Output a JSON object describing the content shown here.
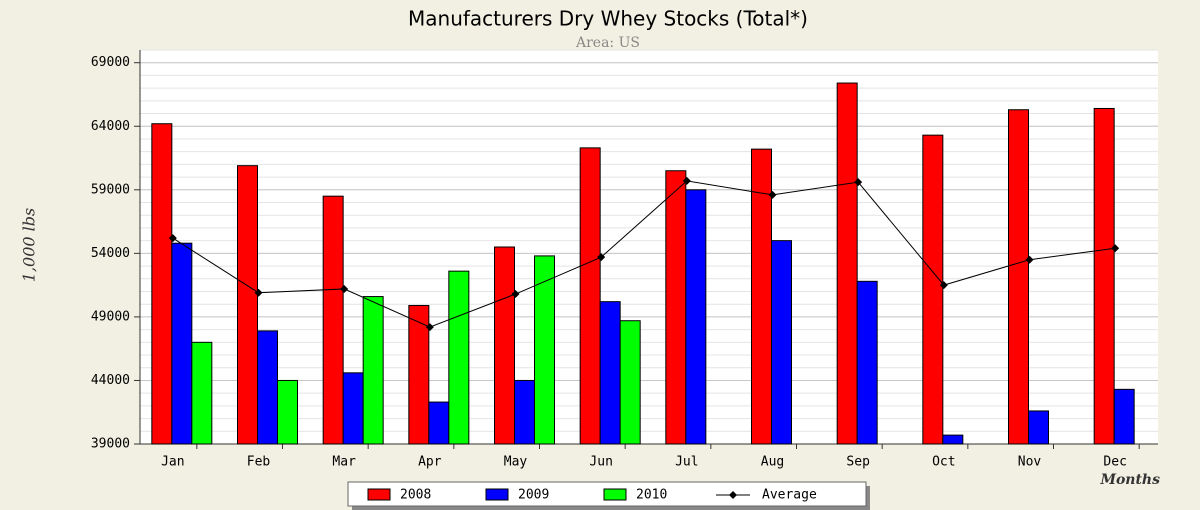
{
  "chart_data": {
    "type": "bar",
    "title": "Manufacturers Dry Whey Stocks (Total*)",
    "subtitle": "Area: US",
    "y_label": "1,000 lbs",
    "x_label": "Months",
    "categories": [
      "Jan",
      "Feb",
      "Mar",
      "Apr",
      "May",
      "Jun",
      "Jul",
      "Aug",
      "Sep",
      "Oct",
      "Nov",
      "Dec"
    ],
    "series": [
      {
        "name": "2008",
        "color": "#ff0000",
        "values": [
          64200,
          60900,
          58500,
          49900,
          54500,
          62300,
          60500,
          62200,
          67400,
          63300,
          65300,
          65400
        ]
      },
      {
        "name": "2009",
        "color": "#0000ff",
        "values": [
          54800,
          47900,
          44600,
          42300,
          44000,
          50200,
          59000,
          55000,
          51800,
          39700,
          41600,
          43300
        ]
      },
      {
        "name": "2010",
        "color": "#00ff00",
        "values": [
          47000,
          44000,
          50600,
          52600,
          53800,
          48700,
          null,
          null,
          null,
          null,
          null,
          null
        ]
      }
    ],
    "average": {
      "name": "Average",
      "color": "#000000",
      "values": [
        55200,
        50900,
        51200,
        48200,
        50800,
        53700,
        59700,
        58600,
        59600,
        51500,
        53500,
        54400
      ]
    },
    "ylim": [
      39000,
      70000
    ],
    "yticks": [
      39000,
      44000,
      49000,
      54000,
      59000,
      64000,
      69000
    ],
    "minor_grid_step": 1000,
    "grid": true
  }
}
